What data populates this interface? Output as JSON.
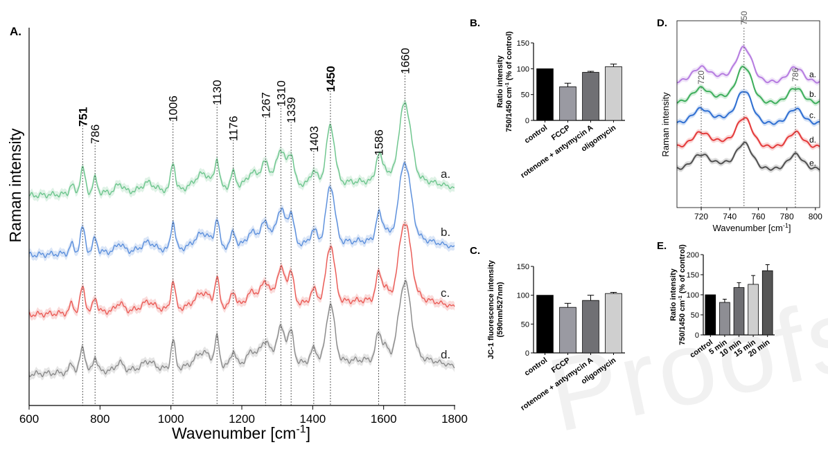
{
  "watermark": "Proofs",
  "chart_data": [
    {
      "panel": "A.",
      "type": "line",
      "xlabel": "Wavenumber [cm⁻¹]",
      "ylabel": "Raman intensity",
      "xlim": [
        600,
        1800
      ],
      "xticks": [
        600,
        800,
        1000,
        1200,
        1400,
        1600,
        1800
      ],
      "peak_labels": [
        {
          "x": 751,
          "text": "751",
          "bold": true
        },
        {
          "x": 786,
          "text": "786"
        },
        {
          "x": 1006,
          "text": "1006"
        },
        {
          "x": 1130,
          "text": "1130"
        },
        {
          "x": 1176,
          "text": "1176"
        },
        {
          "x": 1267,
          "text": "1267"
        },
        {
          "x": 1310,
          "text": "1310"
        },
        {
          "x": 1339,
          "text": "1339"
        },
        {
          "x": 1403,
          "text": "1403"
        },
        {
          "x": 1450,
          "text": "1450",
          "bold": true
        },
        {
          "x": 1586,
          "text": "1586"
        },
        {
          "x": 1660,
          "text": "1660"
        }
      ],
      "series": [
        {
          "label": "a.",
          "color": "#6cc58c",
          "offset": 3.0
        },
        {
          "label": "b.",
          "color": "#5b8fdc",
          "offset": 2.0
        },
        {
          "label": "c.",
          "color": "#ea5a55",
          "offset": 1.0
        },
        {
          "label": "d.",
          "color": "#8a8a8a",
          "offset": 0.0
        }
      ]
    },
    {
      "panel": "B.",
      "type": "bar",
      "ylabel_line1": "Ratio intensity",
      "ylabel_line2": "750/1450 cm⁻¹ (% of control)",
      "categories": [
        "control",
        "FCCP",
        "rotenone + antymycin A",
        "oligomycin"
      ],
      "values": [
        100,
        65,
        93,
        104
      ],
      "errors": [
        0,
        7,
        2,
        5
      ],
      "colors": [
        "#000000",
        "#9a9aa2",
        "#707074",
        "#cfcfcf"
      ],
      "ylim": [
        0,
        150
      ],
      "yticks": [
        0,
        50,
        100,
        150
      ]
    },
    {
      "panel": "C.",
      "type": "bar",
      "ylabel_line1": "JC-1 fluorescence intensity",
      "ylabel_line2": "(590nm/527nm)",
      "categories": [
        "control",
        "FCCP",
        "rotenone + antymycin A",
        "oligomycin"
      ],
      "values": [
        100,
        79,
        91,
        103
      ],
      "errors": [
        0,
        7,
        9,
        2
      ],
      "colors": [
        "#000000",
        "#9a9aa2",
        "#707074",
        "#cfcfcf"
      ],
      "ylim": [
        0,
        150
      ],
      "yticks": [
        0,
        50,
        100,
        150
      ]
    },
    {
      "panel": "D.",
      "type": "line",
      "xlabel": "Wavenumber [cm⁻¹]",
      "ylabel": "Raman intensity",
      "xlim": [
        703,
        803
      ],
      "xticks": [
        720,
        740,
        760,
        780,
        800
      ],
      "peak_labels": [
        {
          "x": 720,
          "text": "720"
        },
        {
          "x": 750,
          "text": "750"
        },
        {
          "x": 786,
          "text": "786"
        }
      ],
      "series": [
        {
          "label": "a.",
          "color": "#b67ce0"
        },
        {
          "label": "b.",
          "color": "#3eae5c"
        },
        {
          "label": "c.",
          "color": "#2f6fd2"
        },
        {
          "label": "d.",
          "color": "#e43a3a"
        },
        {
          "label": "e.",
          "color": "#505050"
        }
      ]
    },
    {
      "panel": "E.",
      "type": "bar",
      "ylabel_line1": "Ratio intensity",
      "ylabel_line2": "750/1450 cm⁻¹ (% of control)",
      "categories": [
        "control",
        "5 min",
        "10 min",
        "15 min",
        "20 min"
      ],
      "values": [
        100,
        81,
        118,
        126,
        160
      ],
      "errors": [
        0,
        8,
        12,
        22,
        15
      ],
      "colors": [
        "#000000",
        "#8e8e94",
        "#6e6e72",
        "#cfcfcf",
        "#555555"
      ],
      "ylim": [
        0,
        200
      ],
      "yticks": [
        0,
        50,
        100,
        150,
        200
      ]
    }
  ]
}
